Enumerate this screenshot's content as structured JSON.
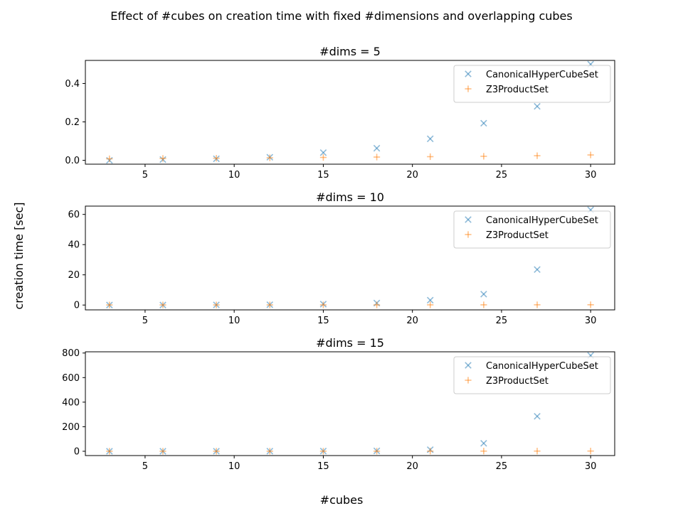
{
  "figure": {
    "title": "Effect of #cubes on creation time with fixed #dimensions and overlapping cubes",
    "xlabel": "#cubes",
    "ylabel": "creation time [sec]"
  },
  "colors": {
    "CanonicalHyperCubeSet": "#1f77b4",
    "Z3ProductSet": "#ff7f0e"
  },
  "chart_data": [
    {
      "type": "scatter",
      "title": "#dims = 5",
      "xlim": [
        1.65,
        31.35
      ],
      "ylim": [
        -0.02,
        0.52
      ],
      "xticks": [
        5,
        10,
        15,
        20,
        25,
        30
      ],
      "yticks": [
        0.0,
        0.2,
        0.4
      ],
      "ytick_labels": [
        "0.0",
        "0.2",
        "0.4"
      ],
      "legend": "upper right",
      "x": [
        3,
        6,
        9,
        12,
        15,
        18,
        21,
        24,
        27,
        30
      ],
      "series": [
        {
          "name": "CanonicalHyperCubeSet",
          "marker": "x",
          "values": [
            0.0,
            0.004,
            0.008,
            0.016,
            0.04,
            0.063,
            0.112,
            0.193,
            0.281,
            0.5
          ]
        },
        {
          "name": "Z3ProductSet",
          "marker": "+",
          "values": [
            0.008,
            0.01,
            0.011,
            0.013,
            0.015,
            0.017,
            0.019,
            0.021,
            0.024,
            0.028
          ]
        }
      ]
    },
    {
      "type": "scatter",
      "title": "#dims = 10",
      "xlim": [
        1.65,
        31.35
      ],
      "ylim": [
        -3.2,
        65.5
      ],
      "xticks": [
        5,
        10,
        15,
        20,
        25,
        30
      ],
      "yticks": [
        0,
        20,
        40,
        60
      ],
      "ytick_labels": [
        "0",
        "20",
        "40",
        "60"
      ],
      "legend": "upper right",
      "x": [
        3,
        6,
        9,
        12,
        15,
        18,
        21,
        24,
        27,
        30
      ],
      "series": [
        {
          "name": "CanonicalHyperCubeSet",
          "marker": "x",
          "values": [
            0.0,
            0.0,
            0.1,
            0.2,
            0.6,
            1.3,
            3.2,
            7.2,
            23.5,
            63.0
          ]
        },
        {
          "name": "Z3ProductSet",
          "marker": "+",
          "values": [
            0.05,
            0.06,
            0.07,
            0.08,
            0.09,
            0.1,
            0.12,
            0.14,
            0.16,
            0.18
          ]
        }
      ]
    },
    {
      "type": "scatter",
      "title": "#dims = 15",
      "xlim": [
        1.65,
        31.35
      ],
      "ylim": [
        -35,
        810
      ],
      "xticks": [
        5,
        10,
        15,
        20,
        25,
        30
      ],
      "yticks": [
        0,
        200,
        400,
        600,
        800
      ],
      "ytick_labels": [
        "0",
        "200",
        "400",
        "600",
        "800"
      ],
      "legend": "upper right",
      "x": [
        3,
        6,
        9,
        12,
        15,
        18,
        21,
        24,
        27,
        30
      ],
      "series": [
        {
          "name": "CanonicalHyperCubeSet",
          "marker": "x",
          "values": [
            0.0,
            0.1,
            0.3,
            0.8,
            1.5,
            3.0,
            13.0,
            65.0,
            285.0,
            780.0
          ]
        },
        {
          "name": "Z3ProductSet",
          "marker": "+",
          "values": [
            0.3,
            0.4,
            0.5,
            0.6,
            0.7,
            0.8,
            1.0,
            1.2,
            1.5,
            1.8
          ]
        }
      ]
    }
  ]
}
